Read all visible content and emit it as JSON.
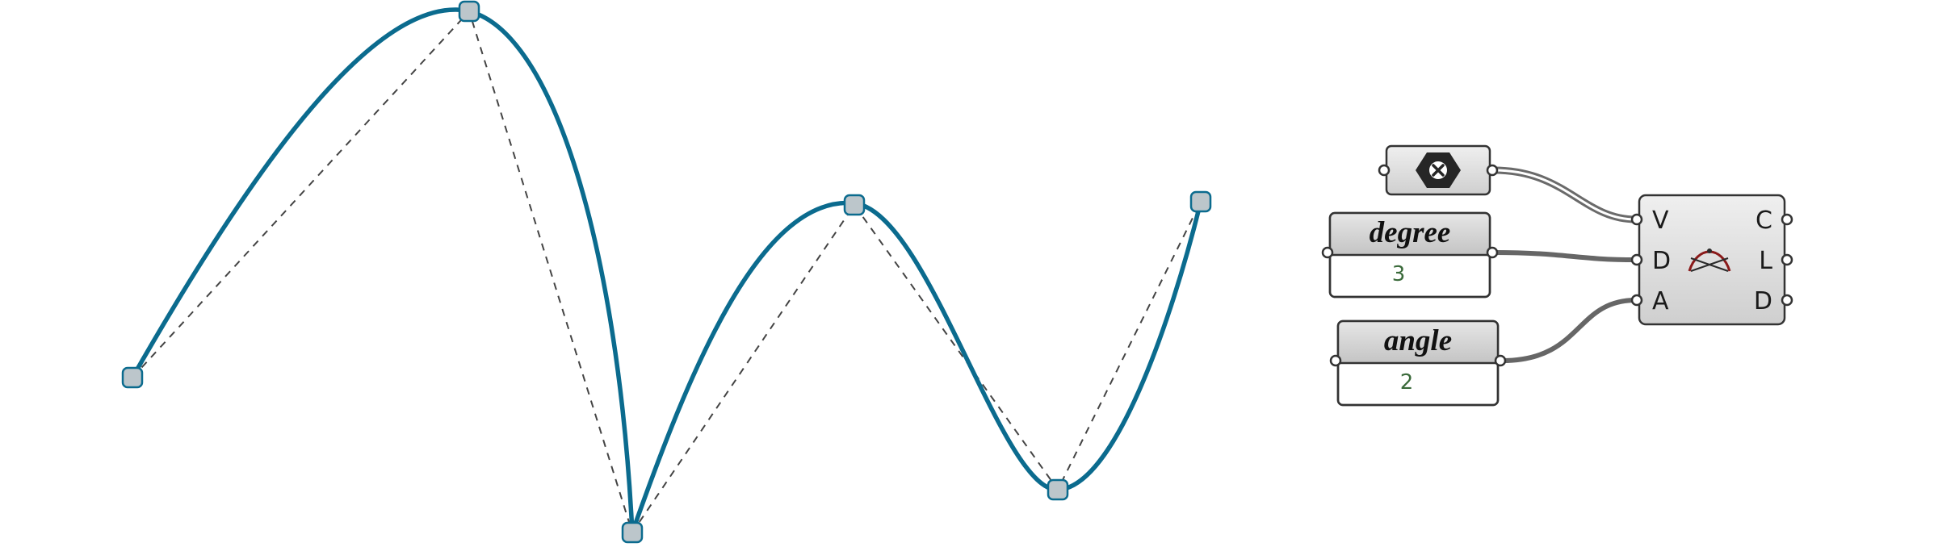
{
  "colors": {
    "curve": "#0b6b8e",
    "control_polygon": "#444444",
    "control_point_fill": "#bcc6cb",
    "wire": "#666666",
    "component_fill": "#dedede"
  },
  "viewport": {
    "curve_type": "interpolated nurbs curve with control polygon",
    "control_polygon_style": "dashed"
  },
  "definition": {
    "vertex_param": {
      "icon": "hexagon-x-icon",
      "state": "empty"
    },
    "degree_panel": {
      "title": "degree",
      "value": "3"
    },
    "angle_panel": {
      "title": "angle",
      "value": "2"
    },
    "component": {
      "icon": "curve-arc-icon",
      "inputs": [
        "V",
        "D",
        "A"
      ],
      "outputs": [
        "C",
        "L",
        "D"
      ]
    }
  }
}
